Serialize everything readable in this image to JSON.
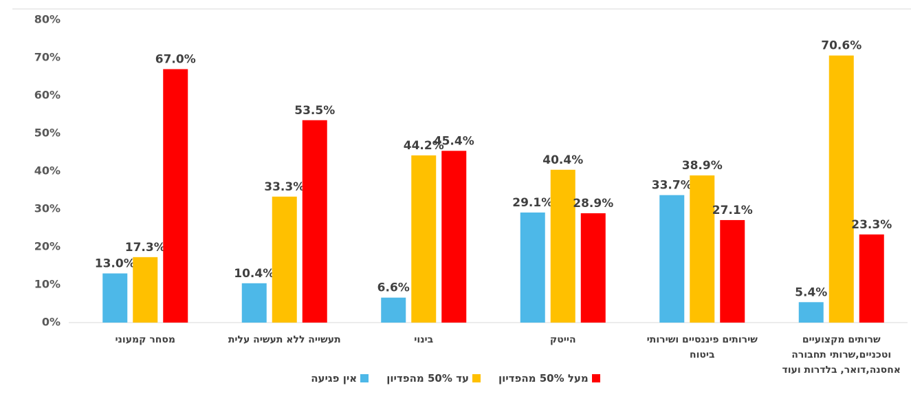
{
  "chart_data": {
    "type": "bar",
    "categories": [
      "מסחר קמעוני",
      "תעשייה ללא תעשיה עלית",
      "בינוי",
      "הייטק",
      "שירותים פיננסיים ושירותי ביטוח",
      "שרותים מקצועיים וטכניים,שרותי תחבורה אחסנה,דואר, בלדרות ועוד"
    ],
    "series": [
      {
        "name": "אין פגיעה",
        "color": "#4db8e8",
        "values": [
          13.0,
          10.4,
          6.6,
          29.1,
          33.7,
          5.4
        ],
        "value_labels": [
          "13.0%",
          "10.4%",
          "6.6%",
          "29.1%",
          "33.7%",
          "5.4%"
        ]
      },
      {
        "name": "עד 50% מהפדיון",
        "color": "#ffc000",
        "values": [
          17.3,
          33.3,
          44.2,
          40.4,
          38.9,
          70.6
        ],
        "value_labels": [
          "17.3%",
          "33.3%",
          "44.2%",
          "40.4%",
          "38.9%",
          "70.6%"
        ]
      },
      {
        "name": "מעל 50% מהפדיון",
        "color": "#ff0000",
        "values": [
          67.0,
          53.5,
          45.4,
          28.9,
          27.1,
          23.3
        ],
        "value_labels": [
          "67.0%",
          "53.5%",
          "45.4%",
          "28.9%",
          "27.1%",
          "23.3%"
        ]
      }
    ],
    "ylim": [
      0,
      80
    ],
    "yticks": [
      {
        "value": 0,
        "label": "0%"
      },
      {
        "value": 10,
        "label": "10%"
      },
      {
        "value": 20,
        "label": "20%"
      },
      {
        "value": 30,
        "label": "30%"
      },
      {
        "value": 40,
        "label": "40%"
      },
      {
        "value": 50,
        "label": "50%"
      },
      {
        "value": 60,
        "label": "60%"
      },
      {
        "value": 70,
        "label": "70%"
      },
      {
        "value": 80,
        "label": "80%"
      }
    ],
    "grid": false,
    "legend": "bottom"
  }
}
